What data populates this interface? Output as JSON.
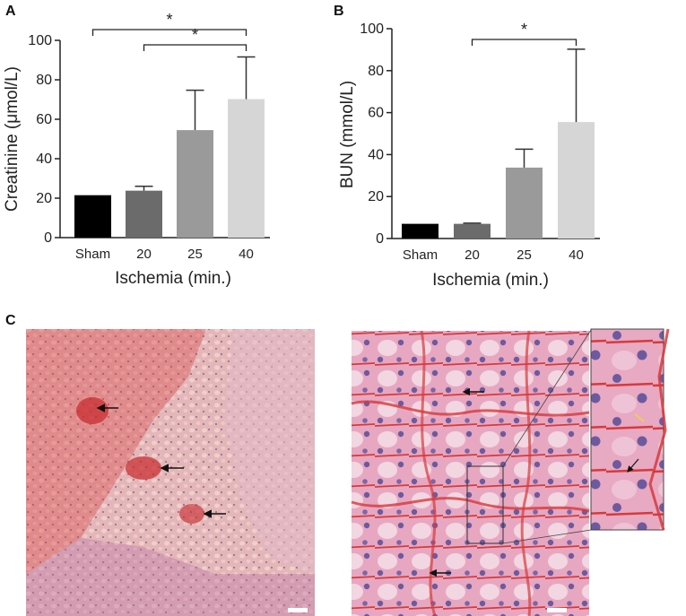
{
  "chart_data": [
    {
      "panel": "A",
      "type": "bar",
      "categories": [
        "Sham",
        "20",
        "25",
        "40"
      ],
      "values": [
        21.5,
        23.8,
        54.5,
        70.2
      ],
      "errors": [
        0,
        2.2,
        20.2,
        21.4
      ],
      "colors": [
        "#000000",
        "#6b6b6b",
        "#9a9a9a",
        "#d6d6d6"
      ],
      "xlabel": "Ischemia (min.)",
      "ylabel": "Creatinine (μmol/L)",
      "ylim": [
        0,
        100
      ],
      "yticks": [
        "0",
        "20",
        "40",
        "60",
        "80",
        "100"
      ],
      "ytick_values": [
        0,
        20,
        40,
        60,
        80,
        100
      ],
      "significance": [
        {
          "from": 0,
          "to": 3,
          "label": "*"
        },
        {
          "from": 1,
          "to": 3,
          "label": "*"
        }
      ],
      "grid": false
    },
    {
      "panel": "B",
      "type": "bar",
      "categories": [
        "Sham",
        "20",
        "25",
        "40"
      ],
      "values": [
        7.0,
        7.0,
        33.8,
        55.5
      ],
      "errors": [
        0,
        0.3,
        8.8,
        34.7
      ],
      "colors": [
        "#000000",
        "#6b6b6b",
        "#9a9a9a",
        "#d6d6d6"
      ],
      "xlabel": "Ischemia (min.)",
      "ylabel": "BUN (mmol/L)",
      "ylim": [
        0,
        100
      ],
      "yticks": [
        "0",
        "20",
        "40",
        "60",
        "80",
        "100"
      ],
      "ytick_values": [
        0,
        20,
        40,
        60,
        80,
        100
      ],
      "significance": [
        {
          "from": 1,
          "to": 3,
          "label": "*"
        }
      ],
      "grid": false
    }
  ],
  "panel_c": {
    "letter": "C",
    "left_image": "H&E kidney tissue, low magnification, hemorrhage regions marked with arrows",
    "right_image": "H&E kidney tubules, high magnification with inset enlargement",
    "colors": {
      "tissue_red": "#d63a3a",
      "tissue_pink": "#e9a6c2",
      "nuclei": "#6d5a9e"
    }
  }
}
